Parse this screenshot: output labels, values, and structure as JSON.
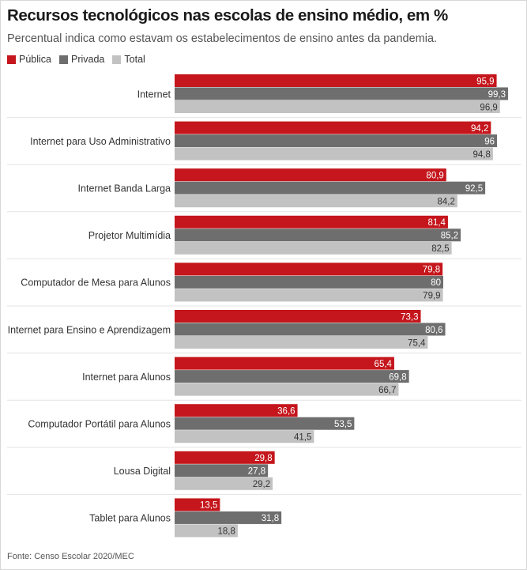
{
  "title": "Recursos tecnológicos nas escolas de ensino médio, em %",
  "subtitle": "Percentual indica como estavam os estabelecimentos de ensino antes da pandemia.",
  "source": "Fonte: Censo Escolar 2020/MEC",
  "colors": {
    "publica": "#c4161c",
    "privada": "#6e6e6e",
    "total": "#c2c2c2",
    "divider": "#e3e3e3"
  },
  "legend": [
    {
      "label": "Pública",
      "color": "#c4161c"
    },
    {
      "label": "Privada",
      "color": "#6e6e6e"
    },
    {
      "label": "Total",
      "color": "#c2c2c2"
    }
  ],
  "chart_data": {
    "type": "bar",
    "orientation": "horizontal",
    "categories": [
      "Internet",
      "Internet para Uso Administrativo",
      "Internet Banda Larga",
      "Projetor Multimídia",
      "Computador de Mesa para Alunos",
      "Internet para Ensino e Aprendizagem",
      "Internet para Alunos",
      "Computador Portátil para Alunos",
      "Lousa Digital",
      "Tablet para Alunos"
    ],
    "series": [
      {
        "name": "Pública",
        "color": "#c4161c",
        "values": [
          95.9,
          94.2,
          80.9,
          81.4,
          79.8,
          73.3,
          65.4,
          36.6,
          29.8,
          13.5
        ]
      },
      {
        "name": "Privada",
        "color": "#6e6e6e",
        "values": [
          99.3,
          96,
          92.5,
          85.2,
          80,
          80.6,
          69.8,
          53.5,
          27.8,
          31.8
        ]
      },
      {
        "name": "Total",
        "color": "#c2c2c2",
        "values": [
          96.9,
          94.8,
          84.2,
          82.5,
          79.9,
          75.4,
          66.7,
          41.5,
          29.2,
          18.8
        ]
      }
    ],
    "value_labels": [
      [
        "95,9",
        "99,3",
        "96,9"
      ],
      [
        "94,2",
        "96",
        "94,8"
      ],
      [
        "80,9",
        "92,5",
        "84,2"
      ],
      [
        "81,4",
        "85,2",
        "82,5"
      ],
      [
        "79,8",
        "80",
        "79,9"
      ],
      [
        "73,3",
        "80,6",
        "75,4"
      ],
      [
        "65,4",
        "69,8",
        "66,7"
      ],
      [
        "36,6",
        "53,5",
        "41,5"
      ],
      [
        "29,8",
        "27,8",
        "29,2"
      ],
      [
        "13,5",
        "31,8",
        "18,8"
      ]
    ],
    "xlim": [
      0,
      100
    ],
    "grid": false,
    "legend_position": "top-left"
  }
}
